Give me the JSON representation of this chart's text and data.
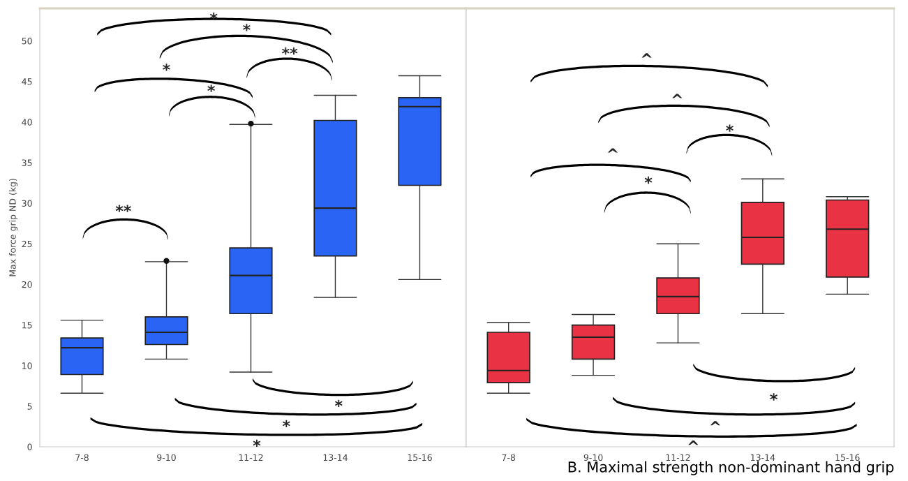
{
  "chart_data": [
    {
      "type": "box",
      "ylabel": "Max force grip ND (kg)",
      "categories": [
        "7-8",
        "9-10",
        "11-12",
        "13-14",
        "15-16"
      ],
      "series": [
        {
          "color": "#2a64f5",
          "boxes": [
            {
              "low": 6.6,
              "q1": 8.9,
              "median": 12.2,
              "q3": 13.4,
              "high": 15.6
            },
            {
              "low": 10.8,
              "q1": 12.6,
              "median": 14.1,
              "q3": 16.0,
              "high": 22.8,
              "outliers": [
                22.9
              ]
            },
            {
              "low": 9.2,
              "q1": 16.4,
              "median": 21.1,
              "q3": 24.5,
              "high": 39.7,
              "outliers": [
                39.8
              ]
            },
            {
              "low": 18.4,
              "q1": 23.5,
              "median": 29.4,
              "q3": 40.2,
              "high": 43.3
            },
            {
              "low": 20.6,
              "q1": 32.2,
              "median": 41.9,
              "q3": 43.0,
              "high": 45.7
            }
          ]
        }
      ],
      "ylim": [
        0,
        54
      ],
      "yticks": [
        0,
        5,
        10,
        15,
        20,
        25,
        30,
        35,
        40,
        45,
        50
      ],
      "annotations": [
        "*",
        "*",
        "**",
        "*",
        "*",
        "**",
        "*",
        "*",
        "*"
      ]
    },
    {
      "type": "box",
      "categories": [
        "7-8",
        "9-10",
        "11-12",
        "13-14",
        "15-16"
      ],
      "series": [
        {
          "color": "#e93244",
          "boxes": [
            {
              "low": 6.6,
              "q1": 7.9,
              "median": 9.4,
              "q3": 14.1,
              "high": 15.3
            },
            {
              "low": 8.8,
              "q1": 10.8,
              "median": 13.5,
              "q3": 15.0,
              "high": 16.3
            },
            {
              "low": 12.8,
              "q1": 16.4,
              "median": 18.5,
              "q3": 20.8,
              "high": 25.0
            },
            {
              "low": 16.4,
              "q1": 22.5,
              "median": 25.8,
              "q3": 30.1,
              "high": 33.0
            },
            {
              "low": 18.8,
              "q1": 20.9,
              "median": 26.8,
              "q3": 30.4,
              "high": 30.8
            }
          ]
        }
      ],
      "ylim": [
        0,
        54
      ],
      "yticks": [
        0,
        5,
        10,
        15,
        20,
        25,
        30,
        35,
        40,
        45,
        50
      ],
      "tick_labels": "x",
      "annotations": [
        "^",
        "^",
        "*",
        "^",
        "*",
        "*",
        "^",
        "^",
        "B. Maximal strength non-dominant hand grip"
      ]
    }
  ]
}
